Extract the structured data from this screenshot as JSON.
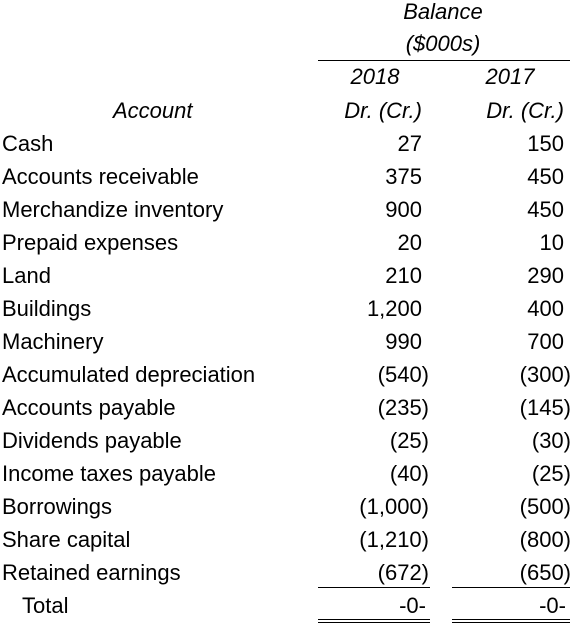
{
  "header": {
    "balance_line1": "Balance",
    "balance_line2": "($000s)",
    "year_2018": "2018",
    "year_2017": "2017",
    "drcr_2018": "Dr. (Cr.)",
    "drcr_2017": "Dr. (Cr.)",
    "account_label": "Account"
  },
  "rows": [
    {
      "account": "Cash",
      "y2018": "27",
      "y2017": "150"
    },
    {
      "account": "Accounts receivable",
      "y2018": "375",
      "y2017": "450"
    },
    {
      "account": "Merchandize inventory",
      "y2018": "900",
      "y2017": "450"
    },
    {
      "account": "Prepaid expenses",
      "y2018": "20",
      "y2017": "10"
    },
    {
      "account": "Land",
      "y2018": "210",
      "y2017": "290"
    },
    {
      "account": "Buildings",
      "y2018": "1,200",
      "y2017": "400"
    },
    {
      "account": "Machinery",
      "y2018": "990",
      "y2017": "700"
    },
    {
      "account": "Accumulated depreciation",
      "y2018": "(540)",
      "y2017": "(300)"
    },
    {
      "account": "Accounts payable",
      "y2018": "(235)",
      "y2017": "(145)"
    },
    {
      "account": "Dividends payable",
      "y2018": "(25)",
      "y2017": "(30)"
    },
    {
      "account": "Income taxes payable",
      "y2018": "(40)",
      "y2017": "(25)"
    },
    {
      "account": "Borrowings",
      "y2018": "(1,000)",
      "y2017": "(500)"
    },
    {
      "account": "Share capital",
      "y2018": "(1,210)",
      "y2017": "(800)"
    },
    {
      "account": "Retained earnings",
      "y2018": "(672)",
      "y2017": "(650)"
    }
  ],
  "total": {
    "label": "Total",
    "y2018": "-0-",
    "y2017": "-0-"
  }
}
